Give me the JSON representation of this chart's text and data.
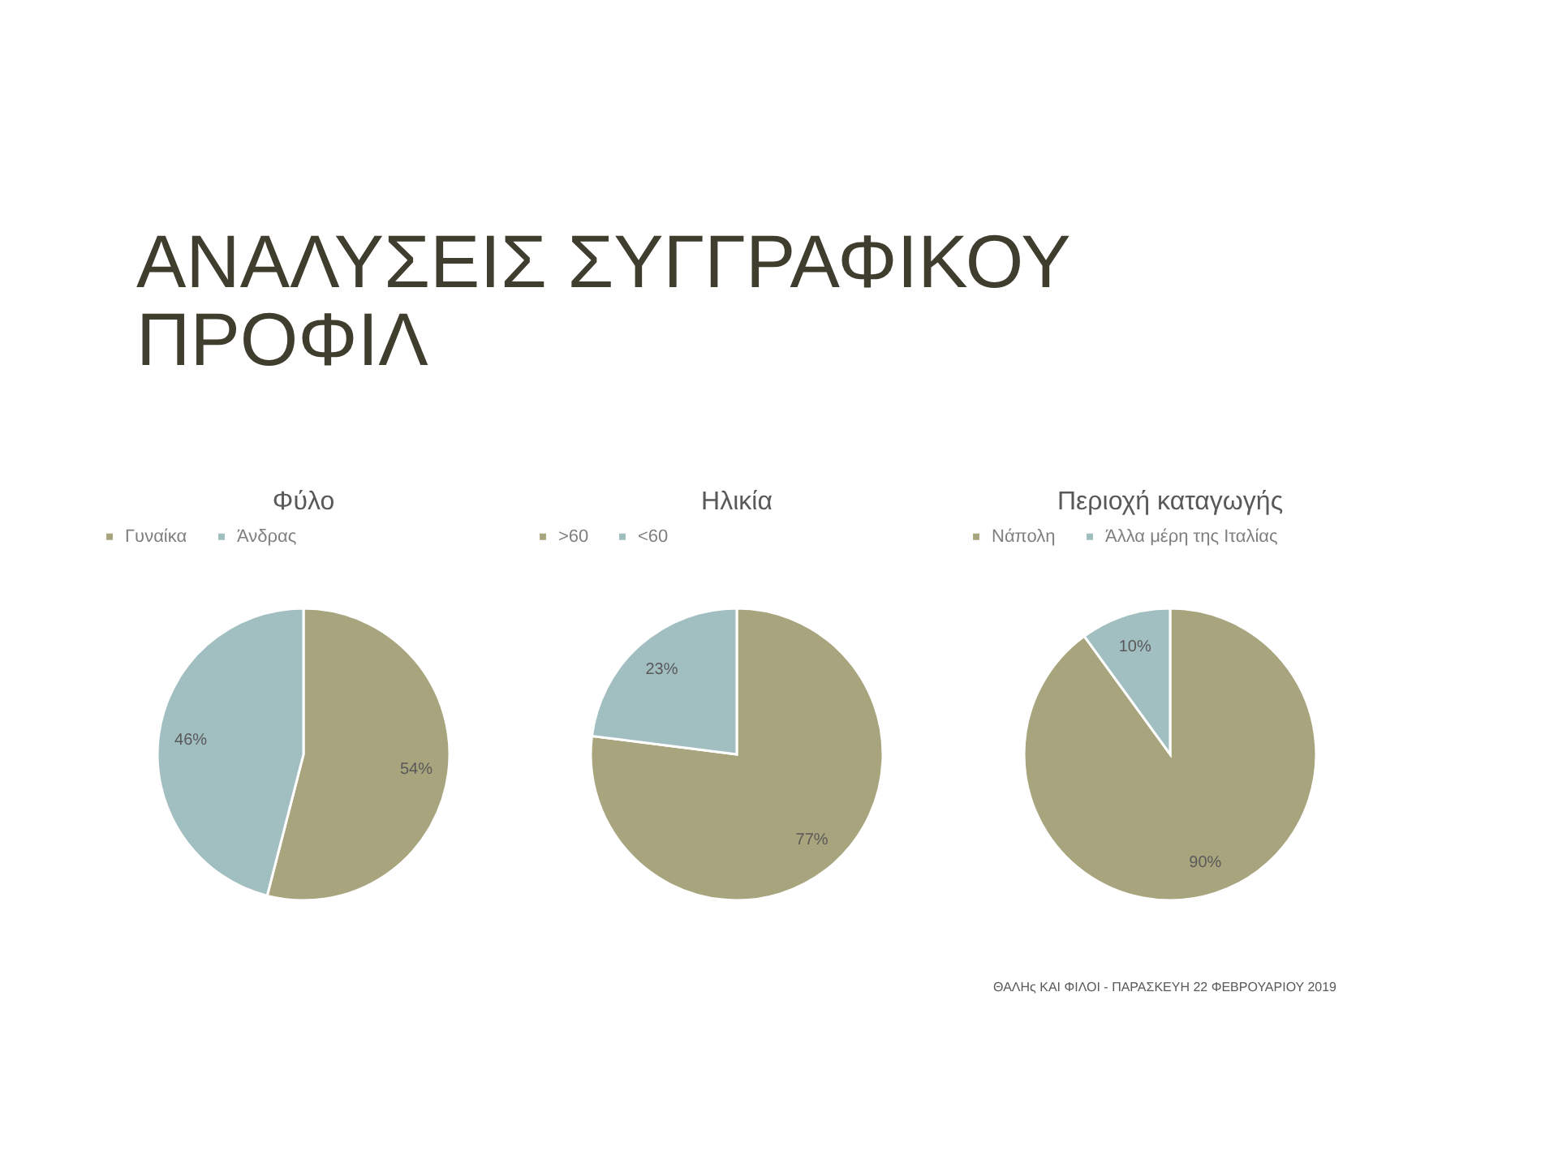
{
  "chart_data": [
    {
      "type": "pie",
      "title": "Φύλο",
      "categories": [
        "Γυναίκα",
        "Άνδρας"
      ],
      "values": [
        54,
        46
      ],
      "colors": [
        "#a8a57e",
        "#a1bfc1"
      ],
      "value_labels": [
        "54%",
        "46%"
      ],
      "legend": "top",
      "annotations": [
        "ΑΝΑΛΥΣΕΙΣ ΣΥΓΓΡΑΦΙΚΟΥ ΠΡΟΦΙΛ"
      ]
    },
    {
      "type": "pie",
      "title": "Ηλικία",
      "categories": [
        ">60",
        "<60"
      ],
      "values": [
        77,
        23
      ],
      "colors": [
        "#a8a57e",
        "#a1bfc1"
      ],
      "value_labels": [
        "77%",
        "23%"
      ],
      "legend": "top"
    },
    {
      "type": "pie",
      "title": "Περιοχή καταγωγής",
      "categories": [
        "Νάπολη",
        "Άλλα μέρη της Ιταλίας"
      ],
      "values": [
        90,
        10
      ],
      "colors": [
        "#a8a57e",
        "#a1bfc1"
      ],
      "value_labels": [
        "90%",
        "10%"
      ],
      "legend": "top",
      "annotations": [
        "ΘΑΛΗς ΚΑΙ ΦΙΛΟΙ - ΠΑΡΑΣΚΕΥΗ 22 ΦΕΒΡΟΥΑΡΙΟΥ 2019"
      ]
    }
  ]
}
